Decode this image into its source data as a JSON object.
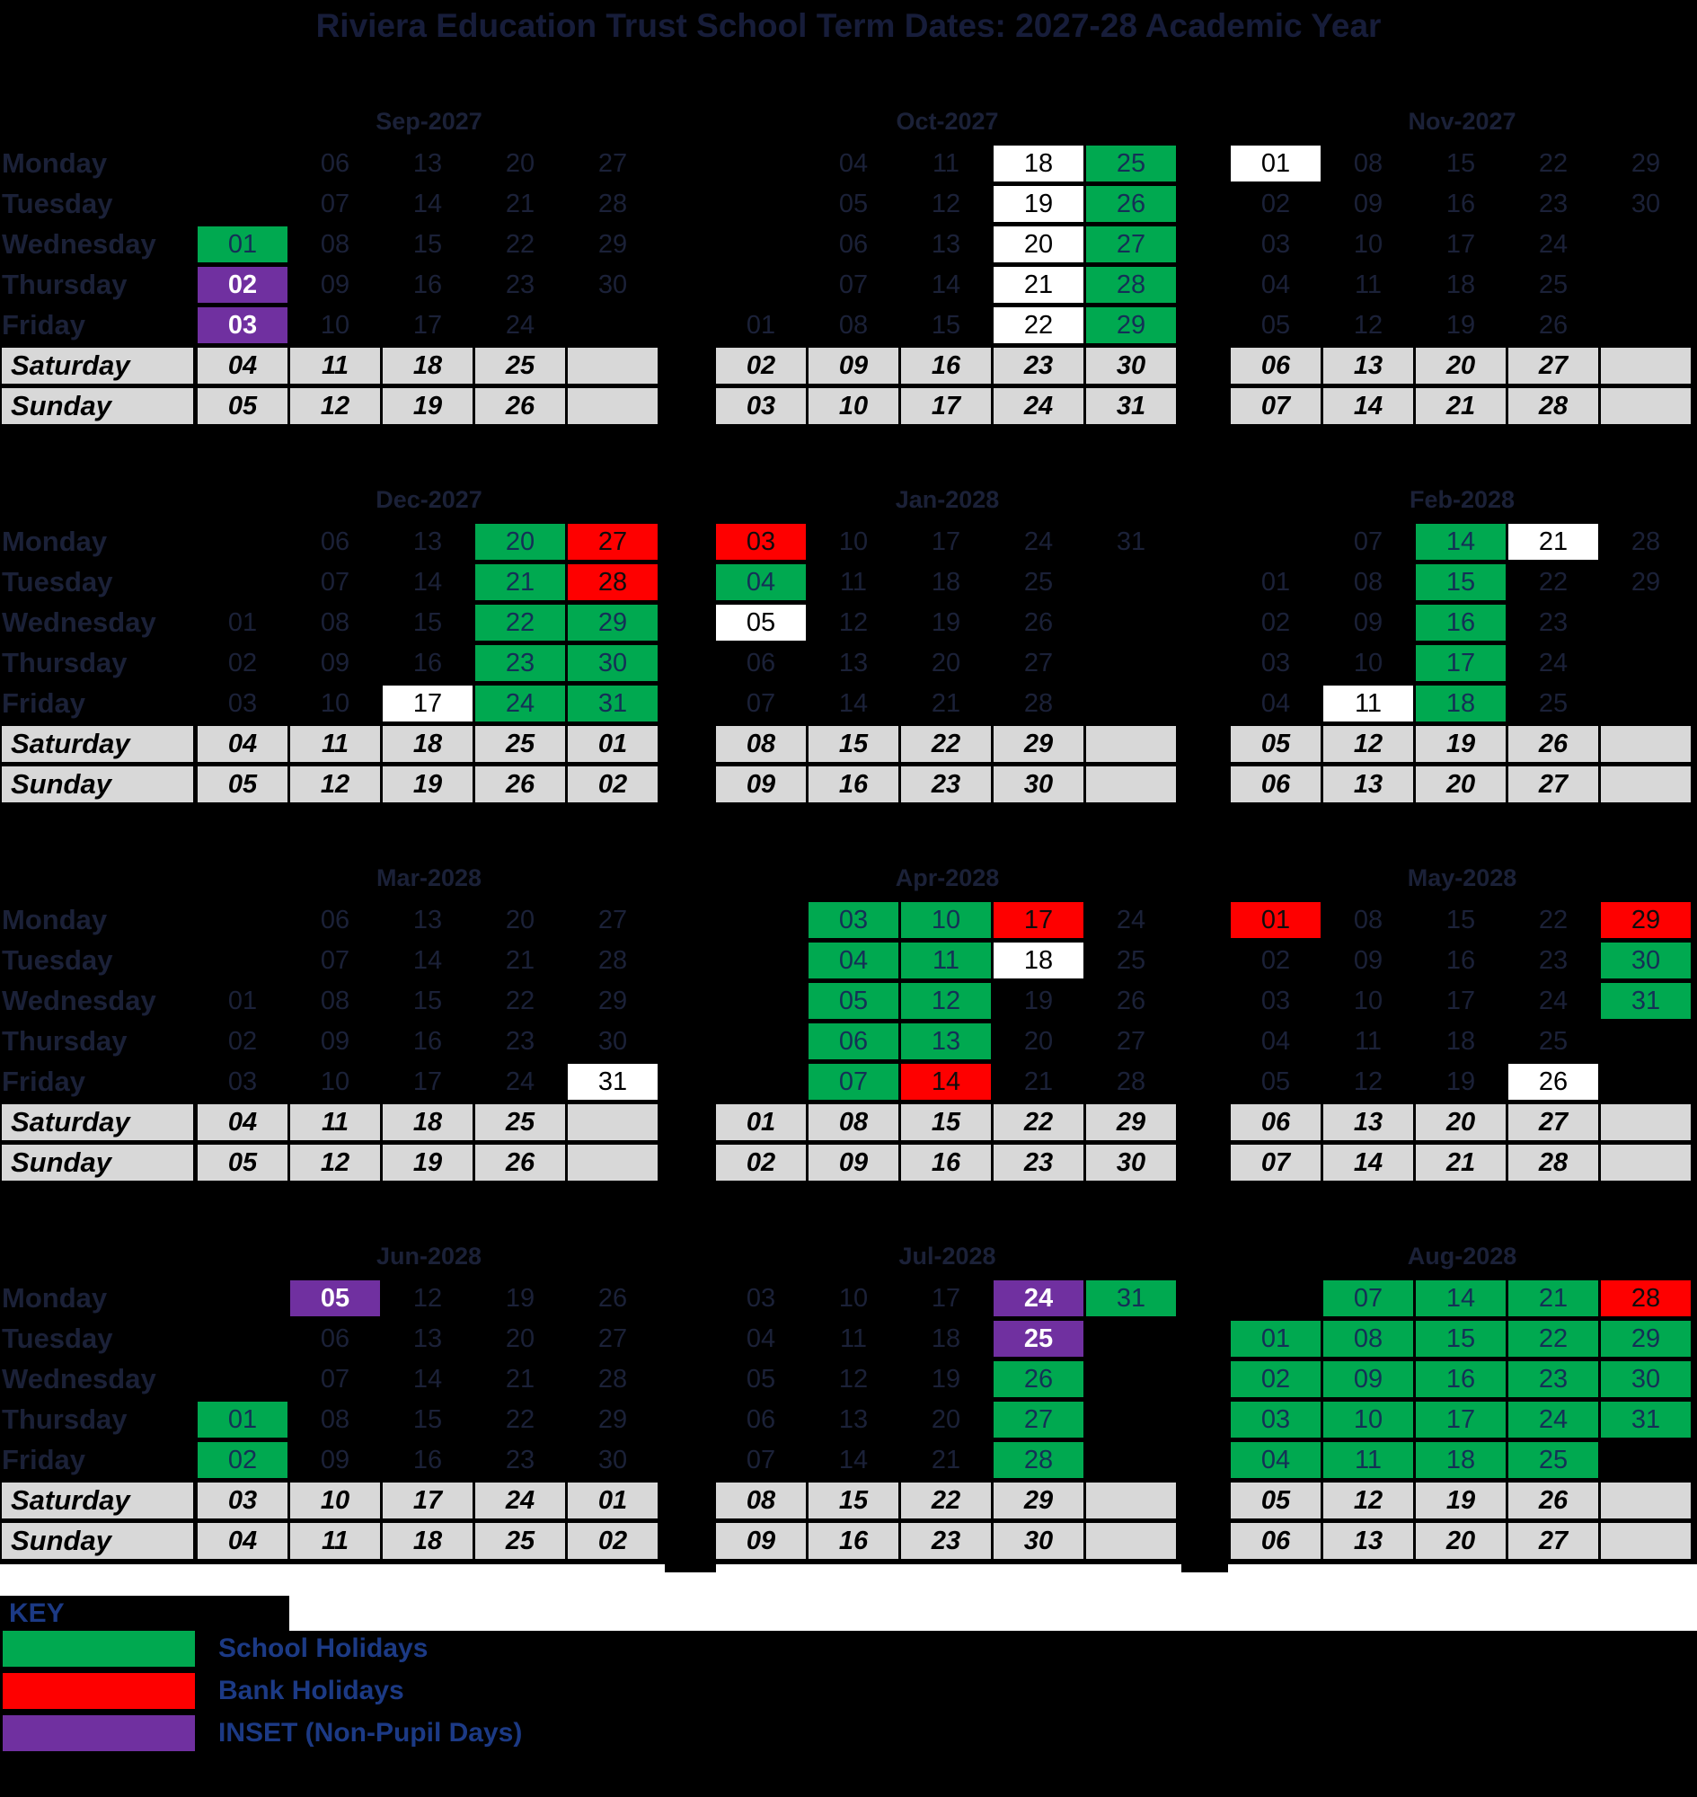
{
  "title": "Riviera Education Trust School Term Dates: 2027-28 Academic Year",
  "weekday_labels": [
    "Monday",
    "Tuesday",
    "Wednesday",
    "Thursday",
    "Friday",
    "Saturday",
    "Sunday"
  ],
  "colors": {
    "background": "#000000",
    "school_holiday_green": "#00A950",
    "bank_holiday_red": "#FE0000",
    "inset_purple": "#7030A0",
    "weekend_gray": "#D8D8D8",
    "half_term_white": "#FFFFFF",
    "navy_text": "#1c3a85",
    "dark_date_text": "#1b2138"
  },
  "key": {
    "heading": "KEY",
    "items": [
      {
        "label": "School Holidays",
        "color": "#00A950"
      },
      {
        "label": "Bank Holidays",
        "color": "#FE0000"
      },
      {
        "label": "INSET (Non-Pupil Days)",
        "color": "#7030A0"
      }
    ]
  },
  "cell_types": {
    "p": "plain-term-day",
    "w": "white-highlight-day",
    "g": "school-holiday",
    "r": "bank-holiday",
    "u": "inset-day"
  },
  "months": [
    {
      "name": "Sep-2027",
      "days": [
        [
          "",
          "06|p",
          "13|p",
          "20|p",
          "27|p"
        ],
        [
          "",
          "07|p",
          "14|p",
          "21|p",
          "28|p"
        ],
        [
          "01|g",
          "08|p",
          "15|p",
          "22|p",
          "29|p"
        ],
        [
          "02|u",
          "09|p",
          "16|p",
          "23|p",
          "30|p"
        ],
        [
          "03|u",
          "10|p",
          "17|p",
          "24|p",
          ""
        ],
        [
          "04",
          "11",
          "18",
          "25",
          ""
        ],
        [
          "05",
          "12",
          "19",
          "26",
          ""
        ]
      ]
    },
    {
      "name": "Oct-2027",
      "days": [
        [
          "",
          "04|p",
          "11|p",
          "18|w",
          "25|g"
        ],
        [
          "",
          "05|p",
          "12|p",
          "19|w",
          "26|g"
        ],
        [
          "",
          "06|p",
          "13|p",
          "20|w",
          "27|g"
        ],
        [
          "",
          "07|p",
          "14|p",
          "21|w",
          "28|g"
        ],
        [
          "01|p",
          "08|p",
          "15|p",
          "22|w",
          "29|g"
        ],
        [
          "02",
          "09",
          "16",
          "23",
          "30"
        ],
        [
          "03",
          "10",
          "17",
          "24",
          "31"
        ]
      ]
    },
    {
      "name": "Nov-2027",
      "days": [
        [
          "01|w",
          "08|p",
          "15|p",
          "22|p",
          "29|p"
        ],
        [
          "02|p",
          "09|p",
          "16|p",
          "23|p",
          "30|p"
        ],
        [
          "03|p",
          "10|p",
          "17|p",
          "24|p",
          ""
        ],
        [
          "04|p",
          "11|p",
          "18|p",
          "25|p",
          ""
        ],
        [
          "05|p",
          "12|p",
          "19|p",
          "26|p",
          ""
        ],
        [
          "06",
          "13",
          "20",
          "27",
          ""
        ],
        [
          "07",
          "14",
          "21",
          "28",
          ""
        ]
      ]
    },
    {
      "name": "Dec-2027",
      "days": [
        [
          "",
          "06|p",
          "13|p",
          "20|g",
          "27|r"
        ],
        [
          "",
          "07|p",
          "14|p",
          "21|g",
          "28|r"
        ],
        [
          "01|p",
          "08|p",
          "15|p",
          "22|g",
          "29|g"
        ],
        [
          "02|p",
          "09|p",
          "16|p",
          "23|g",
          "30|g"
        ],
        [
          "03|p",
          "10|p",
          "17|w",
          "24|g",
          "31|g"
        ],
        [
          "04",
          "11",
          "18",
          "25",
          "01"
        ],
        [
          "05",
          "12",
          "19",
          "26",
          "02"
        ]
      ]
    },
    {
      "name": "Jan-2028",
      "days": [
        [
          "03|r",
          "10|p",
          "17|p",
          "24|p",
          "31|p"
        ],
        [
          "04|g",
          "11|p",
          "18|p",
          "25|p",
          ""
        ],
        [
          "05|w",
          "12|p",
          "19|p",
          "26|p",
          ""
        ],
        [
          "06|p",
          "13|p",
          "20|p",
          "27|p",
          ""
        ],
        [
          "07|p",
          "14|p",
          "21|p",
          "28|p",
          ""
        ],
        [
          "08",
          "15",
          "22",
          "29",
          ""
        ],
        [
          "09",
          "16",
          "23",
          "30",
          ""
        ]
      ]
    },
    {
      "name": "Feb-2028",
      "days": [
        [
          "",
          "07|p",
          "14|g",
          "21|w",
          "28|p"
        ],
        [
          "01|p",
          "08|p",
          "15|g",
          "22|p",
          "29|p"
        ],
        [
          "02|p",
          "09|p",
          "16|g",
          "23|p",
          ""
        ],
        [
          "03|p",
          "10|p",
          "17|g",
          "24|p",
          ""
        ],
        [
          "04|p",
          "11|w",
          "18|g",
          "25|p",
          ""
        ],
        [
          "05",
          "12",
          "19",
          "26",
          ""
        ],
        [
          "06",
          "13",
          "20",
          "27",
          ""
        ]
      ]
    },
    {
      "name": "Mar-2028",
      "days": [
        [
          "",
          "06|p",
          "13|p",
          "20|p",
          "27|p"
        ],
        [
          "",
          "07|p",
          "14|p",
          "21|p",
          "28|p"
        ],
        [
          "01|p",
          "08|p",
          "15|p",
          "22|p",
          "29|p"
        ],
        [
          "02|p",
          "09|p",
          "16|p",
          "23|p",
          "30|p"
        ],
        [
          "03|p",
          "10|p",
          "17|p",
          "24|p",
          "31|w"
        ],
        [
          "04",
          "11",
          "18",
          "25",
          ""
        ],
        [
          "05",
          "12",
          "19",
          "26",
          ""
        ]
      ]
    },
    {
      "name": "Apr-2028",
      "days": [
        [
          "",
          "03|g",
          "10|g",
          "17|r",
          "24|p"
        ],
        [
          "",
          "04|g",
          "11|g",
          "18|w",
          "25|p"
        ],
        [
          "",
          "05|g",
          "12|g",
          "19|p",
          "26|p"
        ],
        [
          "",
          "06|g",
          "13|g",
          "20|p",
          "27|p"
        ],
        [
          "",
          "07|g",
          "14|r",
          "21|p",
          "28|p"
        ],
        [
          "01",
          "08",
          "15",
          "22",
          "29"
        ],
        [
          "02",
          "09",
          "16",
          "23",
          "30"
        ]
      ]
    },
    {
      "name": "May-2028",
      "days": [
        [
          "01|r",
          "08|p",
          "15|p",
          "22|p",
          "29|r"
        ],
        [
          "02|p",
          "09|p",
          "16|p",
          "23|p",
          "30|g"
        ],
        [
          "03|p",
          "10|p",
          "17|p",
          "24|p",
          "31|g"
        ],
        [
          "04|p",
          "11|p",
          "18|p",
          "25|p",
          ""
        ],
        [
          "05|p",
          "12|p",
          "19|p",
          "26|w",
          ""
        ],
        [
          "06",
          "13",
          "20",
          "27",
          ""
        ],
        [
          "07",
          "14",
          "21",
          "28",
          ""
        ]
      ]
    },
    {
      "name": "Jun-2028",
      "days": [
        [
          "",
          "05|u",
          "12|p",
          "19|p",
          "26|p"
        ],
        [
          "",
          "06|p",
          "13|p",
          "20|p",
          "27|p"
        ],
        [
          "",
          "07|p",
          "14|p",
          "21|p",
          "28|p"
        ],
        [
          "01|g",
          "08|p",
          "15|p",
          "22|p",
          "29|p"
        ],
        [
          "02|g",
          "09|p",
          "16|p",
          "23|p",
          "30|p"
        ],
        [
          "03",
          "10",
          "17",
          "24",
          "01"
        ],
        [
          "04",
          "11",
          "18",
          "25",
          "02"
        ]
      ]
    },
    {
      "name": "Jul-2028",
      "days": [
        [
          "03|p",
          "10|p",
          "17|p",
          "24|u",
          "31|g"
        ],
        [
          "04|p",
          "11|p",
          "18|p",
          "25|u",
          ""
        ],
        [
          "05|p",
          "12|p",
          "19|p",
          "26|g",
          ""
        ],
        [
          "06|p",
          "13|p",
          "20|p",
          "27|g",
          ""
        ],
        [
          "07|p",
          "14|p",
          "21|p",
          "28|g",
          ""
        ],
        [
          "08",
          "15",
          "22",
          "29",
          ""
        ],
        [
          "09",
          "16",
          "23",
          "30",
          ""
        ]
      ]
    },
    {
      "name": "Aug-2028",
      "days": [
        [
          "",
          "07|g",
          "14|g",
          "21|g",
          "28|r"
        ],
        [
          "01|g",
          "08|g",
          "15|g",
          "22|g",
          "29|g"
        ],
        [
          "02|g",
          "09|g",
          "16|g",
          "23|g",
          "30|g"
        ],
        [
          "03|g",
          "10|g",
          "17|g",
          "24|g",
          "31|g"
        ],
        [
          "04|g",
          "11|g",
          "18|g",
          "25|g",
          ""
        ],
        [
          "05",
          "12",
          "19",
          "26",
          ""
        ],
        [
          "06",
          "13",
          "20",
          "27",
          ""
        ]
      ]
    }
  ]
}
